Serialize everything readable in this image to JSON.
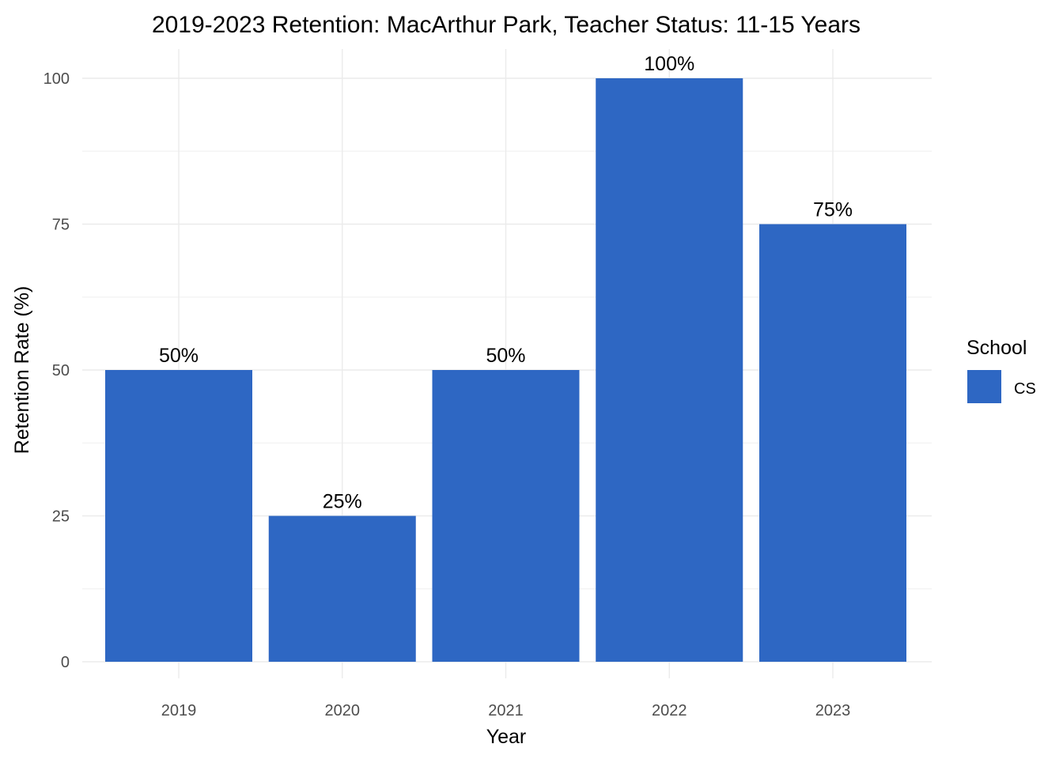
{
  "chart_data": {
    "type": "bar",
    "title": "2019-2023 Retention: MacArthur Park, Teacher Status: 11-15 Years",
    "xlabel": "Year",
    "ylabel": "Retention Rate (%)",
    "categories": [
      "2019",
      "2020",
      "2021",
      "2022",
      "2023"
    ],
    "series": [
      {
        "name": "CS",
        "values": [
          50,
          25,
          50,
          100,
          75
        ],
        "color": "#2e67c3"
      }
    ],
    "data_labels": [
      "50%",
      "25%",
      "50%",
      "100%",
      "75%"
    ],
    "ylim": [
      0,
      100
    ],
    "y_ticks": [
      0,
      25,
      50,
      75,
      100
    ],
    "grid": true,
    "legend": {
      "title": "School",
      "position": "right",
      "entries": [
        "CS"
      ]
    }
  }
}
